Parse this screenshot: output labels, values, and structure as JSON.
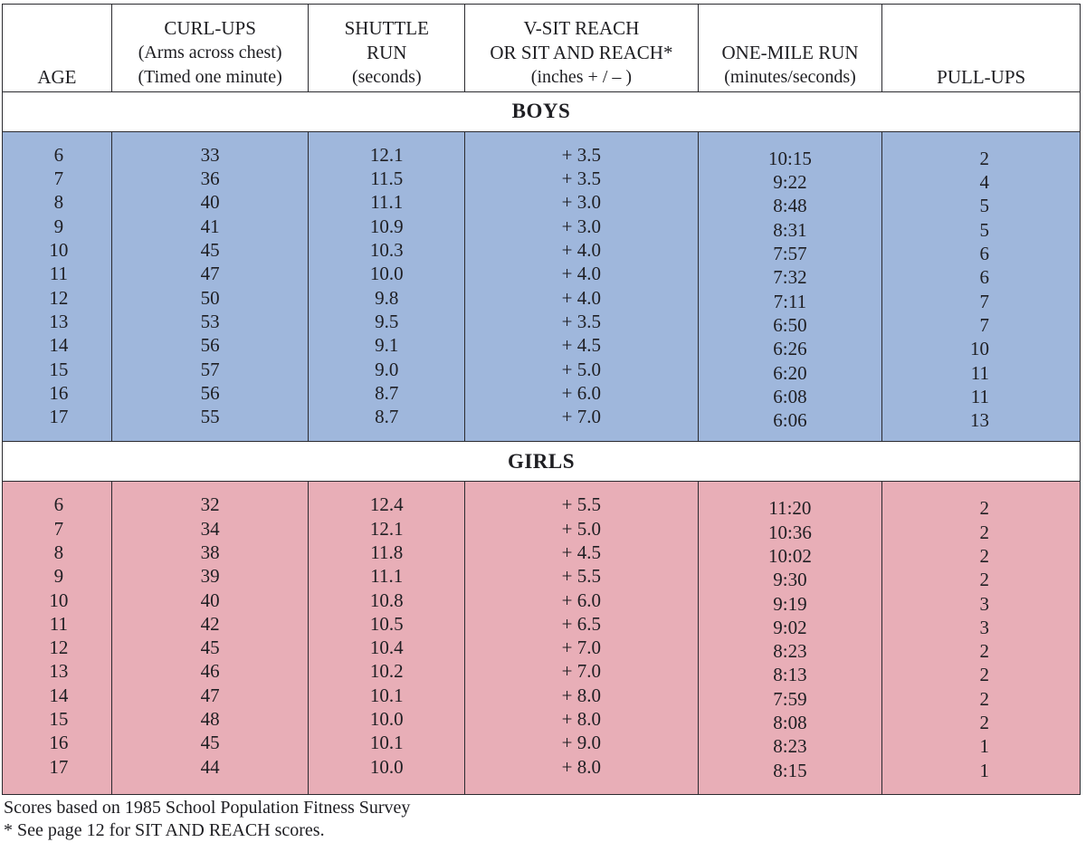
{
  "header": {
    "age": "AGE",
    "curl": [
      "CURL-UPS",
      "(Arms across chest)",
      "(Timed one minute)"
    ],
    "shuttle": [
      "SHUTTLE",
      "RUN",
      "(seconds)"
    ],
    "vsit": [
      "V-SIT REACH",
      "OR SIT AND REACH*",
      "(inches + / – )"
    ],
    "mile": [
      "ONE-MILE RUN",
      "(minutes/seconds)"
    ],
    "pull": "PULL-UPS"
  },
  "boys": {
    "title": "BOYS",
    "age": [
      "6",
      "7",
      "8",
      "9",
      "10",
      "11",
      "12",
      "13",
      "14",
      "15",
      "16",
      "17"
    ],
    "curl": [
      "33",
      "36",
      "40",
      "41",
      "45",
      "47",
      "50",
      "53",
      "56",
      "57",
      "56",
      "55"
    ],
    "shuttle": [
      "12.1",
      "11.5",
      "11.1",
      "10.9",
      "10.3",
      "10.0",
      "9.8",
      "9.5",
      "9.1",
      "9.0",
      "8.7",
      "8.7"
    ],
    "vsit": [
      "+ 3.5",
      "+ 3.5",
      "+ 3.0",
      "+ 3.0",
      "+ 4.0",
      "+ 4.0",
      "+ 4.0",
      "+ 3.5",
      "+ 4.5",
      "+ 5.0",
      "+ 6.0",
      "+ 7.0"
    ],
    "mile": [
      "10:15",
      "9:22",
      "8:48",
      "8:31",
      "7:57",
      "7:32",
      "7:11",
      "6:50",
      "6:26",
      "6:20",
      "6:08",
      "6:06"
    ],
    "pull": [
      "2",
      "4",
      "5",
      "5",
      "6",
      "6",
      "7",
      "7",
      "10",
      "11",
      "11",
      "13"
    ]
  },
  "girls": {
    "title": "GIRLS",
    "age": [
      "6",
      "7",
      "8",
      "9",
      "10",
      "11",
      "12",
      "13",
      "14",
      "15",
      "16",
      "17"
    ],
    "curl": [
      "32",
      "34",
      "38",
      "39",
      "40",
      "42",
      "45",
      "46",
      "47",
      "48",
      "45",
      "44"
    ],
    "shuttle": [
      "12.4",
      "12.1",
      "11.8",
      "11.1",
      "10.8",
      "10.5",
      "10.4",
      "10.2",
      "10.1",
      "10.0",
      "10.1",
      "10.0"
    ],
    "vsit": [
      "+ 5.5",
      "+ 5.0",
      "+ 4.5",
      "+ 5.5",
      "+ 6.0",
      "+ 6.5",
      "+ 7.0",
      "+ 7.0",
      "+ 8.0",
      "+ 8.0",
      "+ 9.0",
      "+ 8.0"
    ],
    "mile": [
      "11:20",
      "10:36",
      "10:02",
      "9:30",
      "9:19",
      "9:02",
      "8:23",
      "8:13",
      "7:59",
      "8:08",
      "8:23",
      "8:15"
    ],
    "pull": [
      "2",
      "2",
      "2",
      "2",
      "3",
      "3",
      "2",
      "2",
      "2",
      "2",
      "1",
      "1"
    ]
  },
  "footnotes": [
    "Scores based on 1985 School Population Fitness Survey",
    "*  See page 12 for SIT AND REACH scores."
  ],
  "colors": {
    "boys_band": "#9fb7dc",
    "girls_band": "#e8aeb7",
    "rule": "#2b2b30"
  }
}
